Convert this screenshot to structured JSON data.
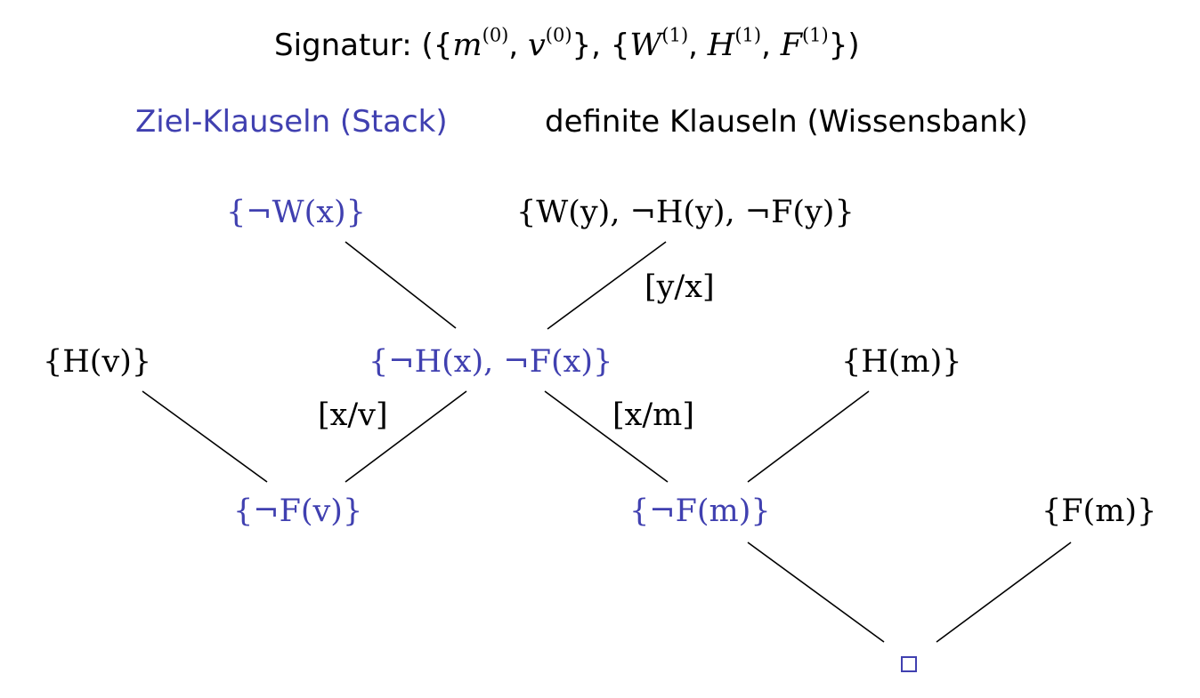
{
  "signature": {
    "prefix": "Signatur: ({",
    "m": "m",
    "m_ar": "(0)",
    "sep1": ", ",
    "v": "v",
    "v_ar": "(0)",
    "mid": "}, {",
    "W": "W",
    "W_ar": "(1)",
    "sep2": ", ",
    "H": "H",
    "H_ar": "(1)",
    "sep3": ", ",
    "F": "F",
    "F_ar": "(1)",
    "suffix": "})"
  },
  "legend": {
    "goal": "Ziel-Klauseln (Stack)",
    "definite": "definite Klauseln (Wissensbank)"
  },
  "colors": {
    "goal": "#4040b0",
    "knowledge": "#000000"
  },
  "nodes": {
    "goal_w": "{¬W(x)}",
    "kb_w": "{W(y), ¬H(y), ¬F(y)}",
    "kb_hv": "{H(v)}",
    "goal_hf": "{¬H(x), ¬F(x)}",
    "kb_hm": "{H(m)}",
    "goal_fv": "{¬F(v)}",
    "goal_fm": "{¬F(m)}",
    "kb_fm": "{F(m)}",
    "empty": "□"
  },
  "substitutions": {
    "y_x": "[y/x]",
    "x_v": "[x/v]",
    "x_m": "[x/m]"
  }
}
